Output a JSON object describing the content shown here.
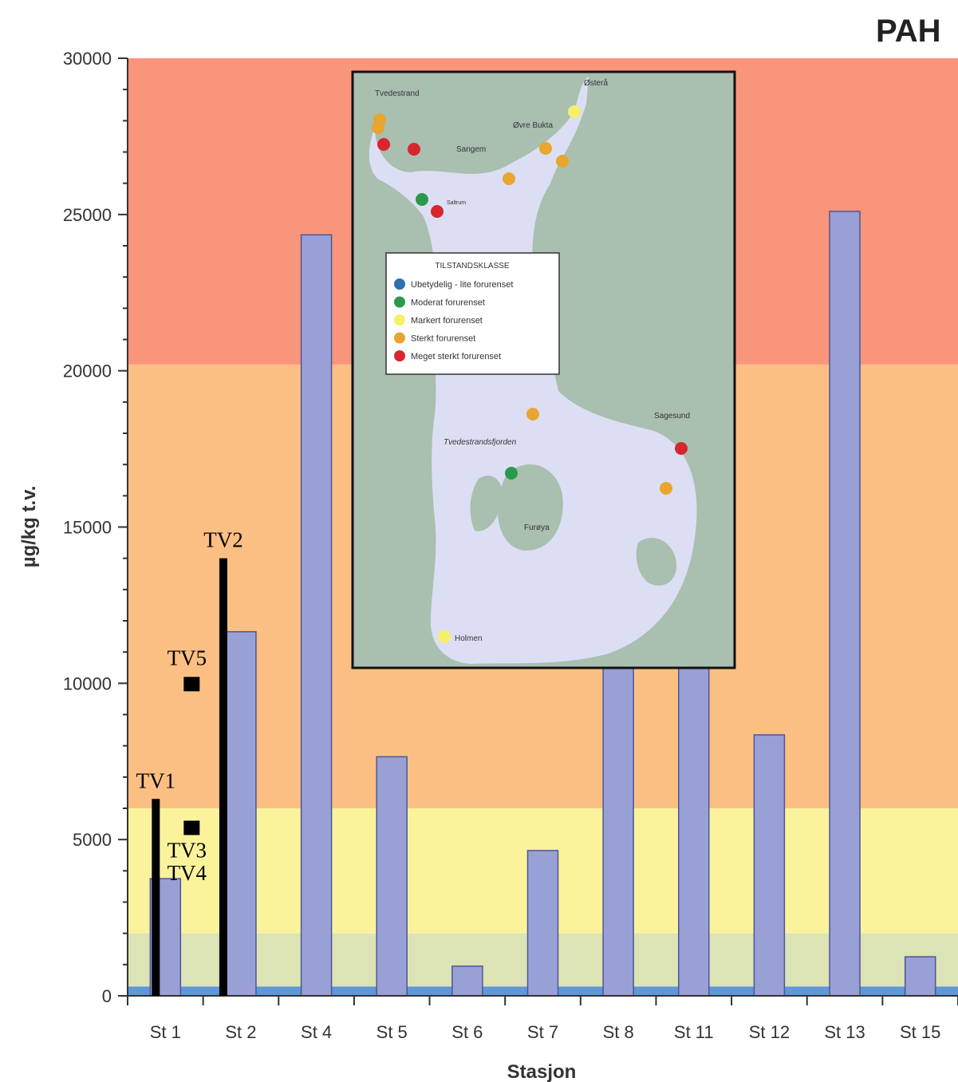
{
  "chart_data": {
    "type": "bar",
    "title": "PAH",
    "xlabel": "Stasjon",
    "ylabel": "µg/kg t.v.",
    "ylim": [
      0,
      30000
    ],
    "yticks": [
      "0",
      "5000",
      "10000",
      "15000",
      "20000",
      "25000",
      "30000"
    ],
    "categories": [
      "St 1",
      "St 2",
      "St 4",
      "St 5",
      "St 6",
      "St 7",
      "St 8",
      "St 11",
      "St 12",
      "St 13",
      "St 15"
    ],
    "values": [
      3750,
      11650,
      24350,
      7650,
      950,
      4650,
      28100,
      14350,
      8350,
      25100,
      1250
    ],
    "bar_color": "#98a0d6",
    "class_bands": [
      {
        "from": 0,
        "to": 300,
        "color": "#5f97d8"
      },
      {
        "from": 300,
        "to": 2000,
        "color": "#dce3b5"
      },
      {
        "from": 2000,
        "to": 6000,
        "color": "#fbf39c"
      },
      {
        "from": 6000,
        "to": 20200,
        "color": "#fcbf83"
      },
      {
        "from": 20200,
        "to": 30000,
        "color": "#f9957a"
      }
    ],
    "overlay_markers": [
      {
        "label": "TV1",
        "kind": "range",
        "station": "St 1",
        "from": 0,
        "to": 6300
      },
      {
        "label": "TV2",
        "kind": "range",
        "station": "St 2",
        "from": 0,
        "to": 14000
      },
      {
        "label": "TV5",
        "kind": "point",
        "station": "St 1",
        "value": 10000
      },
      {
        "label": "TV3",
        "kind": "point",
        "station": "St 1",
        "value": 5400
      },
      {
        "label": "TV4",
        "kind": "label",
        "station": "St 1"
      }
    ]
  },
  "map_inset": {
    "legend_title": "TILSTANDSKLASSE",
    "legend_items": [
      {
        "label": "Ubetydelig - lite forurenset",
        "color": "#2f6fb4"
      },
      {
        "label": "Moderat forurenset",
        "color": "#2a9a4a"
      },
      {
        "label": "Markert forurenset",
        "color": "#f6ef6a"
      },
      {
        "label": "Sterkt forurenset",
        "color": "#e8a530"
      },
      {
        "label": "Meget sterkt forurenset",
        "color": "#d8262e"
      }
    ],
    "place_names": [
      "Tvedestrand",
      "Østerå",
      "Øvre Bukta",
      "Sangem",
      "Saltrum",
      "Sagesund",
      "Tvedestrandsfjorden",
      "Furøya",
      "Holmen"
    ]
  }
}
